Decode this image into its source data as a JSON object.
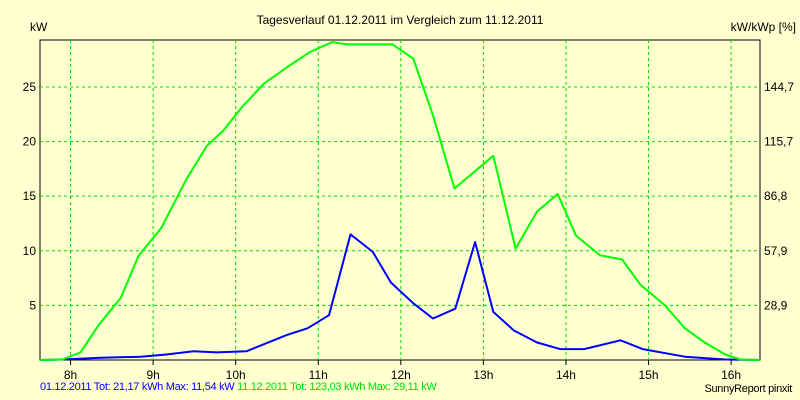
{
  "chart_data": {
    "type": "line",
    "title": "Tagesverlauf 01.12.2011 im Vergleich zum 11.12.2011",
    "ylabel": "kW",
    "ylabel_right": "kW/kWp [%]",
    "xlabel": "",
    "xlim": [
      7.63,
      16.35
    ],
    "ylim": [
      0,
      29.3
    ],
    "x_ticks": [
      8,
      9,
      10,
      11,
      12,
      13,
      14,
      15,
      16
    ],
    "x_tick_labels": [
      "8h",
      "9h",
      "10h",
      "11h",
      "12h",
      "13h",
      "14h",
      "15h",
      "16h"
    ],
    "y_ticks": [
      5,
      10,
      15,
      20,
      25
    ],
    "y_tick_labels": [
      "5",
      "10",
      "15",
      "20",
      "25"
    ],
    "y_right_tick_labels": [
      "28,9",
      "57,9",
      "86,8",
      "115,7",
      "144,7"
    ],
    "grid": true,
    "series": [
      {
        "name": "01.12.2011",
        "color": "#0000ff",
        "x": [
          7.9,
          8.37,
          8.85,
          9.16,
          9.49,
          9.77,
          10.13,
          10.62,
          10.87,
          11.13,
          11.39,
          11.66,
          11.88,
          12.15,
          12.39,
          12.66,
          12.9,
          13.12,
          13.37,
          13.65,
          13.93,
          14.22,
          14.66,
          14.93,
          15.44,
          15.93
        ],
        "y": [
          0.05,
          0.2,
          0.3,
          0.5,
          0.8,
          0.7,
          0.8,
          2.3,
          2.9,
          4.1,
          11.5,
          9.9,
          7.1,
          5.2,
          3.8,
          4.7,
          10.8,
          4.4,
          2.7,
          1.6,
          1.0,
          1.0,
          1.8,
          1.0,
          0.3,
          0.05
        ]
      },
      {
        "name": "11.12.2011",
        "color": "#00ff00",
        "x": [
          7.9,
          8.12,
          8.34,
          8.61,
          8.82,
          9.1,
          9.4,
          9.65,
          9.85,
          10.07,
          10.34,
          10.66,
          10.9,
          11.17,
          11.35,
          11.9,
          12.15,
          12.39,
          12.65,
          13.12,
          13.39,
          13.65,
          13.9,
          14.12,
          14.41,
          14.68,
          14.9,
          15.2,
          15.44,
          15.68,
          15.93,
          16.11
        ],
        "y": [
          0.05,
          0.7,
          3.2,
          5.7,
          9.5,
          12.1,
          16.5,
          19.6,
          21.0,
          23.1,
          25.3,
          27.0,
          28.2,
          29.11,
          28.9,
          28.9,
          27.6,
          22.4,
          15.7,
          18.7,
          10.2,
          13.6,
          15.2,
          11.4,
          9.6,
          9.2,
          6.9,
          5.0,
          2.9,
          1.6,
          0.5,
          0.05
        ]
      }
    ]
  },
  "legend": {
    "series1": "01.12.2011 Tot: 21,17 kWh Max: 11,54 kW",
    "series2": "11.12.2011 Tot: 123,03 kWh Max: 29,11 kW"
  },
  "credit": "SunnyReport pinxit"
}
